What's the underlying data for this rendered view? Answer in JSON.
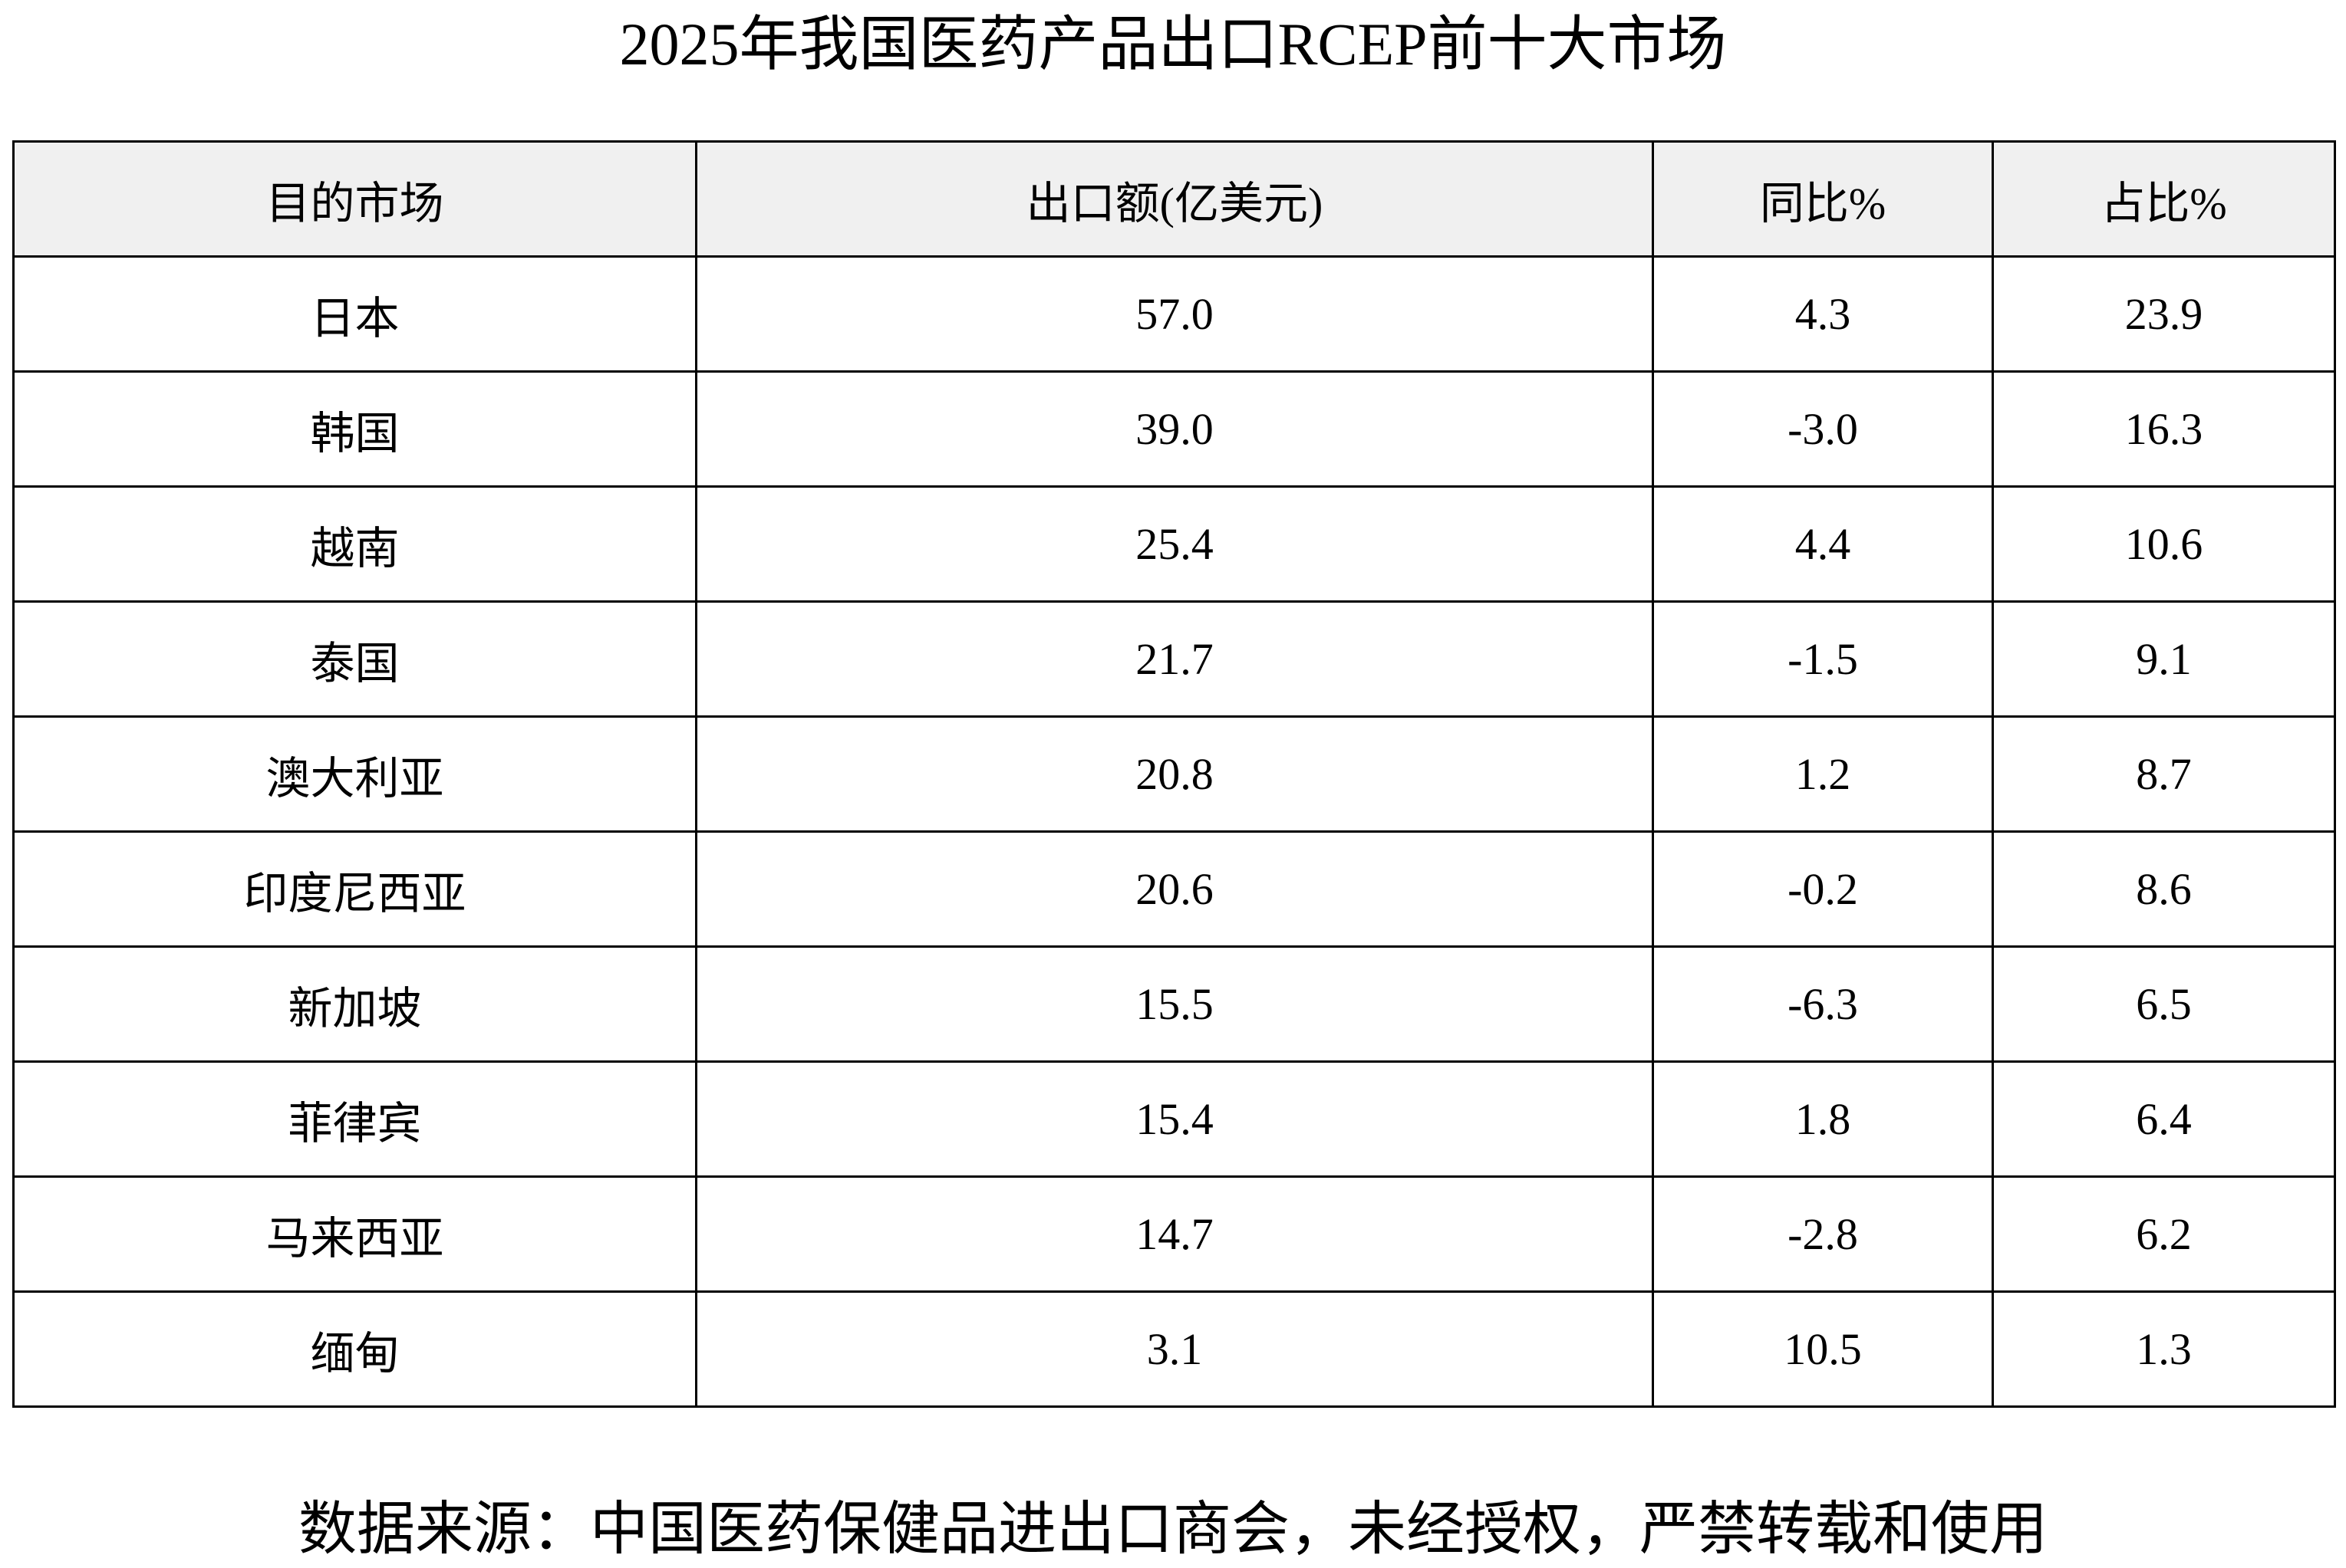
{
  "title": "2025年我国医药产品出口RCEP前十大市场",
  "table": {
    "headers": [
      "目的市场",
      "出口额(亿美元)",
      "同比%",
      "占比%"
    ],
    "rows": [
      [
        "日本",
        "57.0",
        "4.3",
        "23.9"
      ],
      [
        "韩国",
        "39.0",
        "-3.0",
        "16.3"
      ],
      [
        "越南",
        "25.4",
        "4.4",
        "10.6"
      ],
      [
        "泰国",
        "21.7",
        "-1.5",
        "9.1"
      ],
      [
        "澳大利亚",
        "20.8",
        "1.2",
        "8.7"
      ],
      [
        "印度尼西亚",
        "20.6",
        "-0.2",
        "8.6"
      ],
      [
        "新加坡",
        "15.5",
        "-6.3",
        "6.5"
      ],
      [
        "菲律宾",
        "15.4",
        "1.8",
        "6.4"
      ],
      [
        "马来西亚",
        "14.7",
        "-2.8",
        "6.2"
      ],
      [
        "缅甸",
        "3.1",
        "10.5",
        "1.3"
      ]
    ],
    "header_bg": "#f0f0f0"
  },
  "footer": "数据来源：中国医药保健品进出口商会，未经授权，严禁转载和使用"
}
